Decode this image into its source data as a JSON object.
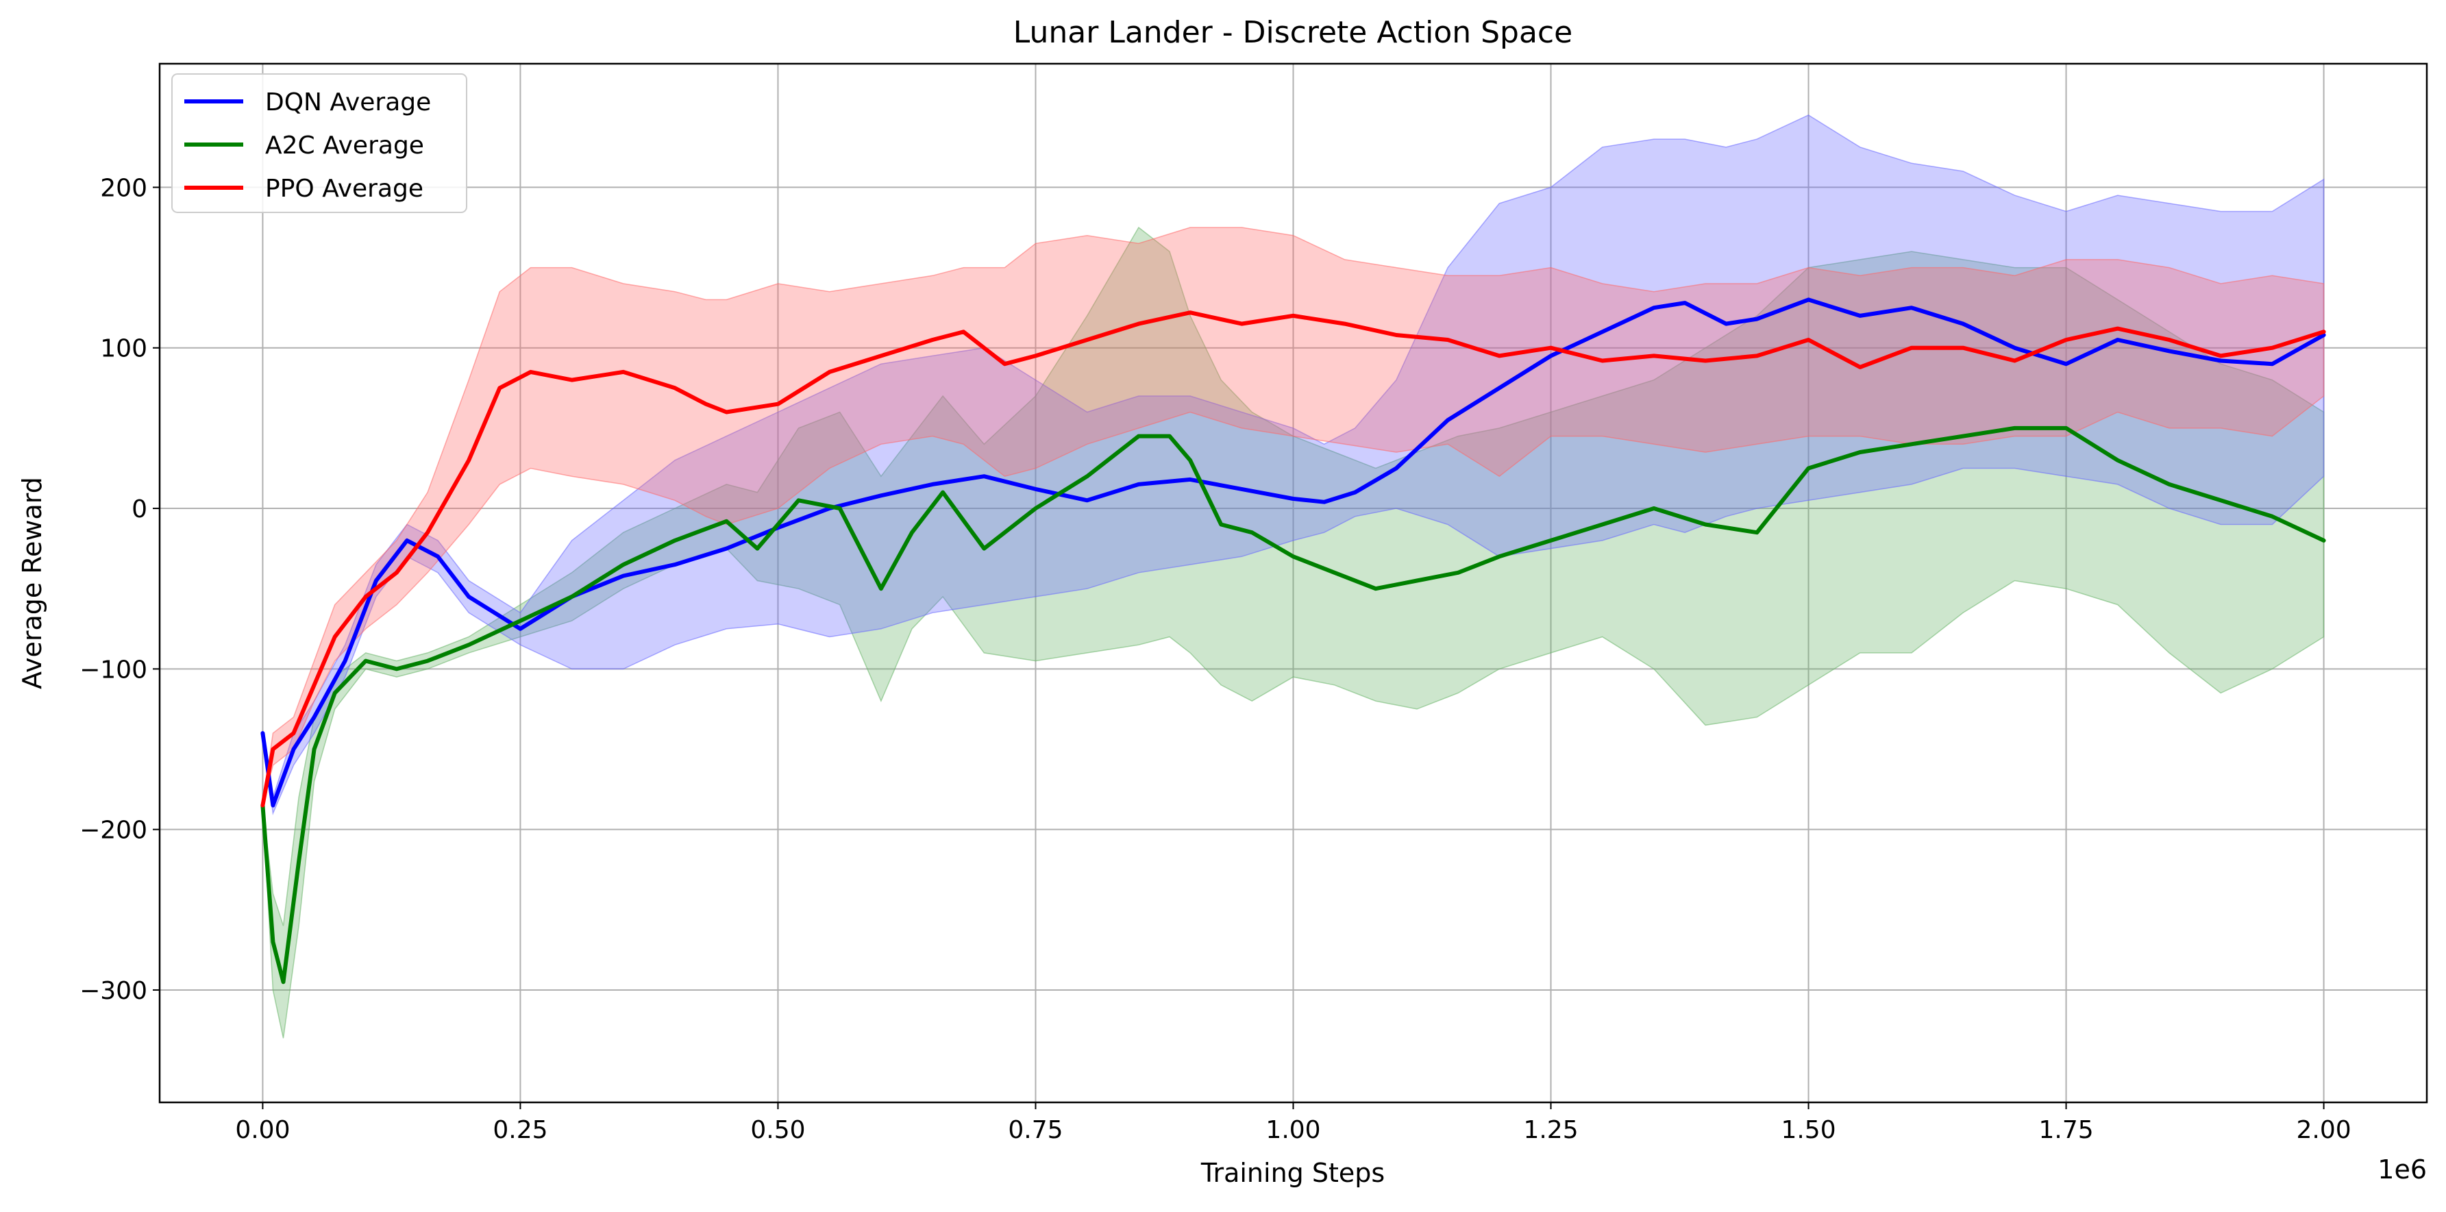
{
  "chart_data": {
    "type": "line",
    "title": "Lunar Lander - Discrete Action Space",
    "xlabel": "Training Steps",
    "ylabel": "Average Reward",
    "x_offset_label": "1e6",
    "xlim": [
      -0.1,
      2.1
    ],
    "ylim": [
      -370,
      277
    ],
    "x_ticks": [
      0.0,
      0.25,
      0.5,
      0.75,
      1.0,
      1.25,
      1.5,
      1.75,
      2.0
    ],
    "x_tick_labels": [
      "0.00",
      "0.25",
      "0.50",
      "0.75",
      "1.00",
      "1.25",
      "1.50",
      "1.75",
      "2.00"
    ],
    "y_ticks": [
      -300,
      -200,
      -100,
      0,
      100,
      200
    ],
    "y_tick_labels": [
      "−300",
      "−200",
      "−100",
      "0",
      "100",
      "200"
    ],
    "grid": true,
    "legend_position": "top-left",
    "series": [
      {
        "name": "DQN Average",
        "color": "#0000ff",
        "band_color": "#6666ff",
        "x": [
          0.0,
          0.01,
          0.03,
          0.05,
          0.08,
          0.11,
          0.14,
          0.17,
          0.2,
          0.25,
          0.3,
          0.35,
          0.4,
          0.45,
          0.5,
          0.55,
          0.6,
          0.65,
          0.7,
          0.75,
          0.8,
          0.85,
          0.9,
          0.95,
          1.0,
          1.03,
          1.06,
          1.1,
          1.15,
          1.2,
          1.25,
          1.3,
          1.35,
          1.38,
          1.42,
          1.45,
          1.5,
          1.55,
          1.6,
          1.65,
          1.7,
          1.75,
          1.8,
          1.85,
          1.9,
          1.95,
          2.0
        ],
        "mean": [
          -140,
          -185,
          -150,
          -130,
          -95,
          -45,
          -20,
          -30,
          -55,
          -75,
          -55,
          -42,
          -35,
          -25,
          -12,
          0,
          8,
          15,
          20,
          12,
          5,
          15,
          18,
          12,
          6,
          4,
          10,
          25,
          55,
          75,
          95,
          110,
          125,
          128,
          115,
          118,
          130,
          120,
          125,
          115,
          100,
          90,
          105,
          98,
          92,
          90,
          108
        ],
        "lower": [
          -140,
          -190,
          -160,
          -140,
          -105,
          -55,
          -30,
          -40,
          -65,
          -85,
          -100,
          -100,
          -85,
          -75,
          -72,
          -80,
          -75,
          -65,
          -60,
          -55,
          -50,
          -40,
          -35,
          -30,
          -20,
          -15,
          -5,
          0,
          -10,
          -30,
          -25,
          -20,
          -10,
          -15,
          -5,
          0,
          5,
          10,
          15,
          25,
          25,
          20,
          15,
          0,
          -10,
          -10,
          20
        ],
        "upper": [
          -140,
          -180,
          -140,
          -120,
          -85,
          -35,
          -10,
          -20,
          -45,
          -65,
          -20,
          5,
          30,
          45,
          60,
          75,
          90,
          95,
          100,
          80,
          60,
          70,
          70,
          60,
          50,
          40,
          50,
          80,
          150,
          190,
          200,
          225,
          230,
          230,
          225,
          230,
          245,
          225,
          215,
          210,
          195,
          185,
          195,
          190,
          185,
          185,
          205
        ]
      },
      {
        "name": "A2C Average",
        "color": "#008000",
        "band_color": "#66b266",
        "x": [
          0.0,
          0.01,
          0.02,
          0.035,
          0.05,
          0.07,
          0.1,
          0.13,
          0.16,
          0.2,
          0.25,
          0.3,
          0.35,
          0.4,
          0.45,
          0.48,
          0.52,
          0.56,
          0.6,
          0.63,
          0.66,
          0.7,
          0.75,
          0.8,
          0.85,
          0.88,
          0.9,
          0.93,
          0.96,
          1.0,
          1.04,
          1.08,
          1.12,
          1.16,
          1.2,
          1.25,
          1.3,
          1.35,
          1.4,
          1.45,
          1.5,
          1.55,
          1.6,
          1.65,
          1.7,
          1.75,
          1.8,
          1.85,
          1.9,
          1.95,
          2.0
        ],
        "mean": [
          -185,
          -270,
          -295,
          -220,
          -150,
          -115,
          -95,
          -100,
          -95,
          -85,
          -70,
          -55,
          -35,
          -20,
          -8,
          -25,
          5,
          0,
          -50,
          -15,
          10,
          -25,
          0,
          20,
          45,
          45,
          30,
          -10,
          -15,
          -30,
          -40,
          -50,
          -45,
          -40,
          -30,
          -20,
          -10,
          0,
          -10,
          -15,
          25,
          35,
          40,
          45,
          50,
          50,
          30,
          15,
          5,
          -5,
          -20
        ],
        "lower": [
          -185,
          -300,
          -330,
          -260,
          -170,
          -125,
          -100,
          -105,
          -100,
          -90,
          -80,
          -70,
          -50,
          -35,
          -25,
          -45,
          -50,
          -60,
          -120,
          -75,
          -55,
          -90,
          -95,
          -90,
          -85,
          -80,
          -90,
          -110,
          -120,
          -105,
          -110,
          -120,
          -125,
          -115,
          -100,
          -90,
          -80,
          -100,
          -135,
          -130,
          -110,
          -90,
          -90,
          -65,
          -45,
          -50,
          -60,
          -90,
          -115,
          -100,
          -80
        ],
        "upper": [
          -185,
          -240,
          -260,
          -180,
          -130,
          -105,
          -90,
          -95,
          -90,
          -80,
          -60,
          -40,
          -15,
          0,
          15,
          10,
          50,
          60,
          20,
          45,
          70,
          40,
          70,
          120,
          175,
          160,
          120,
          80,
          60,
          45,
          35,
          25,
          35,
          45,
          50,
          60,
          70,
          80,
          100,
          120,
          150,
          155,
          160,
          155,
          150,
          150,
          130,
          110,
          90,
          80,
          60
        ]
      },
      {
        "name": "PPO Average",
        "color": "#ff0000",
        "band_color": "#ff6666",
        "x": [
          0.0,
          0.01,
          0.03,
          0.05,
          0.07,
          0.1,
          0.13,
          0.16,
          0.2,
          0.23,
          0.26,
          0.3,
          0.35,
          0.4,
          0.43,
          0.45,
          0.5,
          0.55,
          0.6,
          0.65,
          0.68,
          0.72,
          0.75,
          0.8,
          0.85,
          0.9,
          0.95,
          1.0,
          1.05,
          1.1,
          1.15,
          1.2,
          1.25,
          1.3,
          1.35,
          1.4,
          1.45,
          1.5,
          1.55,
          1.6,
          1.65,
          1.7,
          1.75,
          1.8,
          1.85,
          1.9,
          1.95,
          2.0
        ],
        "mean": [
          -185,
          -150,
          -140,
          -110,
          -80,
          -55,
          -40,
          -15,
          30,
          75,
          85,
          80,
          85,
          75,
          65,
          60,
          65,
          85,
          95,
          105,
          110,
          90,
          95,
          105,
          115,
          122,
          115,
          120,
          115,
          108,
          105,
          95,
          100,
          92,
          95,
          92,
          95,
          105,
          88,
          100,
          100,
          92,
          105,
          112,
          105,
          95,
          100,
          110
        ],
        "lower": [
          -185,
          -160,
          -150,
          -120,
          -95,
          -75,
          -60,
          -40,
          -10,
          15,
          25,
          20,
          15,
          5,
          -5,
          -10,
          0,
          25,
          40,
          45,
          40,
          20,
          25,
          40,
          50,
          60,
          50,
          45,
          40,
          35,
          40,
          20,
          45,
          45,
          40,
          35,
          40,
          45,
          45,
          40,
          40,
          45,
          45,
          60,
          50,
          50,
          45,
          70
        ],
        "upper": [
          -185,
          -140,
          -130,
          -95,
          -60,
          -40,
          -20,
          10,
          80,
          135,
          150,
          150,
          140,
          135,
          130,
          130,
          140,
          135,
          140,
          145,
          150,
          150,
          165,
          170,
          165,
          175,
          175,
          170,
          155,
          150,
          145,
          145,
          150,
          140,
          135,
          140,
          140,
          150,
          145,
          150,
          150,
          145,
          155,
          155,
          150,
          140,
          145,
          140
        ]
      }
    ]
  }
}
